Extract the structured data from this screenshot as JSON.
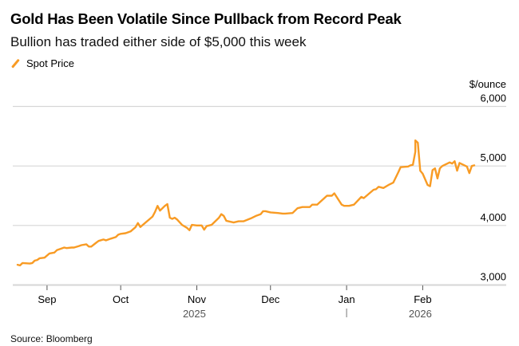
{
  "chart_data": {
    "type": "line",
    "title": "Gold Has Been Volatile Since Pullback from Record Peak",
    "subtitle": "Bullion has traded either side of $5,000 this week",
    "source": "Source: Bloomberg",
    "ylabel": "$/ounce",
    "ylim": [
      3000,
      6000
    ],
    "yticks": [
      {
        "value": 6000,
        "label": "6,000"
      },
      {
        "value": 5000,
        "label": "5,000"
      },
      {
        "value": 4000,
        "label": "4,000"
      },
      {
        "value": 3000,
        "label": "3,000"
      }
    ],
    "xlim": [
      "2025-08-20",
      "2026-02-22"
    ],
    "xticks": [
      {
        "date": "2025-09-01",
        "label": "Sep"
      },
      {
        "date": "2025-10-01",
        "label": "Oct"
      },
      {
        "date": "2025-11-01",
        "label": "Nov"
      },
      {
        "date": "2025-12-01",
        "label": "Dec"
      },
      {
        "date": "2026-01-01",
        "label": "Jan"
      },
      {
        "date": "2026-02-01",
        "label": "Feb"
      }
    ],
    "year_labels": [
      {
        "label": "2025",
        "center_date": "2025-10-31"
      },
      {
        "label": "2026",
        "center_date": "2026-01-31",
        "divider_date": "2026-01-01"
      }
    ],
    "grid": true,
    "legend": {
      "position": "top-left",
      "entries": [
        "Spot Price"
      ]
    },
    "series": [
      {
        "name": "Spot Price",
        "color": "#f89b24",
        "points": [
          [
            "2025-08-20",
            3340
          ],
          [
            "2025-08-21",
            3330
          ],
          [
            "2025-08-22",
            3370
          ],
          [
            "2025-08-25",
            3360
          ],
          [
            "2025-08-26",
            3370
          ],
          [
            "2025-08-27",
            3410
          ],
          [
            "2025-08-28",
            3420
          ],
          [
            "2025-08-29",
            3450
          ],
          [
            "2025-08-31",
            3460
          ],
          [
            "2025-09-02",
            3530
          ],
          [
            "2025-09-04",
            3545
          ],
          [
            "2025-09-05",
            3585
          ],
          [
            "2025-09-08",
            3630
          ],
          [
            "2025-09-09",
            3620
          ],
          [
            "2025-09-11",
            3630
          ],
          [
            "2025-09-12",
            3630
          ],
          [
            "2025-09-14",
            3655
          ],
          [
            "2025-09-15",
            3670
          ],
          [
            "2025-09-17",
            3685
          ],
          [
            "2025-09-18",
            3645
          ],
          [
            "2025-09-19",
            3645
          ],
          [
            "2025-09-21",
            3710
          ],
          [
            "2025-09-22",
            3740
          ],
          [
            "2025-09-24",
            3765
          ],
          [
            "2025-09-25",
            3750
          ],
          [
            "2025-09-27",
            3780
          ],
          [
            "2025-09-29",
            3805
          ],
          [
            "2025-09-30",
            3845
          ],
          [
            "2025-10-01",
            3860
          ],
          [
            "2025-10-03",
            3870
          ],
          [
            "2025-10-05",
            3900
          ],
          [
            "2025-10-07",
            3970
          ],
          [
            "2025-10-08",
            4040
          ],
          [
            "2025-10-09",
            3975
          ],
          [
            "2025-10-14",
            4150
          ],
          [
            "2025-10-15",
            4230
          ],
          [
            "2025-10-16",
            4330
          ],
          [
            "2025-10-17",
            4250
          ],
          [
            "2025-10-19",
            4330
          ],
          [
            "2025-10-20",
            4360
          ],
          [
            "2025-10-21",
            4130
          ],
          [
            "2025-10-22",
            4110
          ],
          [
            "2025-10-23",
            4130
          ],
          [
            "2025-10-24",
            4100
          ],
          [
            "2025-10-26",
            4010
          ],
          [
            "2025-10-28",
            3960
          ],
          [
            "2025-10-29",
            3920
          ],
          [
            "2025-10-30",
            4010
          ],
          [
            "2025-11-01",
            4000
          ],
          [
            "2025-11-03",
            4000
          ],
          [
            "2025-11-04",
            3930
          ],
          [
            "2025-11-05",
            3990
          ],
          [
            "2025-11-07",
            4010
          ],
          [
            "2025-11-10",
            4130
          ],
          [
            "2025-11-11",
            4190
          ],
          [
            "2025-11-12",
            4160
          ],
          [
            "2025-11-13",
            4080
          ],
          [
            "2025-11-16",
            4050
          ],
          [
            "2025-11-18",
            4070
          ],
          [
            "2025-11-20",
            4070
          ],
          [
            "2025-11-23",
            4120
          ],
          [
            "2025-11-25",
            4160
          ],
          [
            "2025-11-27",
            4190
          ],
          [
            "2025-11-28",
            4240
          ],
          [
            "2025-11-29",
            4240
          ],
          [
            "2025-12-01",
            4220
          ],
          [
            "2025-12-04",
            4210
          ],
          [
            "2025-12-06",
            4200
          ],
          [
            "2025-12-07",
            4200
          ],
          [
            "2025-12-10",
            4210
          ],
          [
            "2025-12-12",
            4290
          ],
          [
            "2025-12-14",
            4310
          ],
          [
            "2025-12-17",
            4310
          ],
          [
            "2025-12-18",
            4350
          ],
          [
            "2025-12-20",
            4350
          ],
          [
            "2025-12-24",
            4500
          ],
          [
            "2025-12-26",
            4500
          ],
          [
            "2025-12-27",
            4540
          ],
          [
            "2025-12-30",
            4350
          ],
          [
            "2025-12-31",
            4330
          ],
          [
            "2026-01-02",
            4330
          ],
          [
            "2026-01-04",
            4350
          ],
          [
            "2026-01-07",
            4480
          ],
          [
            "2026-01-08",
            4460
          ],
          [
            "2026-01-12",
            4600
          ],
          [
            "2026-01-13",
            4610
          ],
          [
            "2026-01-14",
            4650
          ],
          [
            "2026-01-16",
            4630
          ],
          [
            "2026-01-18",
            4680
          ],
          [
            "2026-01-20",
            4720
          ],
          [
            "2026-01-22",
            4890
          ],
          [
            "2026-01-23",
            4980
          ],
          [
            "2026-01-26",
            4990
          ],
          [
            "2026-01-27",
            5010
          ],
          [
            "2026-01-28",
            5020
          ],
          [
            "2026-01-29",
            5240
          ],
          [
            "2026-01-29",
            5430
          ],
          [
            "2026-01-30",
            5390
          ],
          [
            "2026-01-31",
            4920
          ],
          [
            "2026-02-01",
            4870
          ],
          [
            "2026-02-03",
            4680
          ],
          [
            "2026-02-04",
            4660
          ],
          [
            "2026-02-05",
            4930
          ],
          [
            "2026-02-06",
            4960
          ],
          [
            "2026-02-07",
            4790
          ],
          [
            "2026-02-08",
            4960
          ],
          [
            "2026-02-09",
            5000
          ],
          [
            "2026-02-11",
            5040
          ],
          [
            "2026-02-12",
            5060
          ],
          [
            "2026-02-13",
            5040
          ],
          [
            "2026-02-14",
            5080
          ],
          [
            "2026-02-15",
            4920
          ],
          [
            "2026-02-16",
            5050
          ],
          [
            "2026-02-18",
            5010
          ],
          [
            "2026-02-19",
            4990
          ],
          [
            "2026-02-20",
            4880
          ],
          [
            "2026-02-21",
            5000
          ],
          [
            "2026-02-22",
            5010
          ]
        ]
      }
    ]
  }
}
